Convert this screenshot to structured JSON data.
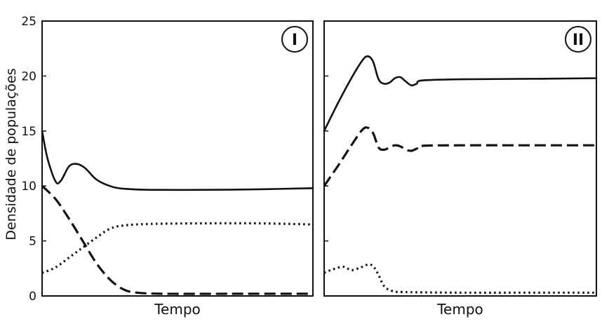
{
  "chart_data": {
    "ylabel": "Densidade de populações",
    "ylim": [
      0,
      25
    ],
    "yticks": [
      "0",
      "5",
      "10",
      "15",
      "20",
      "25"
    ],
    "panels": [
      {
        "id": "I",
        "label": "I",
        "xlabel": "Tempo",
        "type": "line",
        "series": [
          {
            "style": "solid",
            "points": [
              [
                0,
                15
              ],
              [
                0.02,
                12.5
              ],
              [
                0.05,
                10.4
              ],
              [
                0.07,
                10.5
              ],
              [
                0.1,
                11.8
              ],
              [
                0.13,
                12.0
              ],
              [
                0.16,
                11.6
              ],
              [
                0.2,
                10.6
              ],
              [
                0.25,
                10.0
              ],
              [
                0.3,
                9.75
              ],
              [
                0.4,
                9.65
              ],
              [
                0.6,
                9.65
              ],
              [
                0.8,
                9.7
              ],
              [
                1.0,
                9.8
              ]
            ]
          },
          {
            "style": "dashed",
            "points": [
              [
                0,
                10
              ],
              [
                0.05,
                8.8
              ],
              [
                0.1,
                7.0
              ],
              [
                0.15,
                5.0
              ],
              [
                0.2,
                3.0
              ],
              [
                0.25,
                1.5
              ],
              [
                0.3,
                0.6
              ],
              [
                0.35,
                0.3
              ],
              [
                0.45,
                0.2
              ],
              [
                0.7,
                0.2
              ],
              [
                1.0,
                0.2
              ]
            ]
          },
          {
            "style": "dotted",
            "points": [
              [
                0,
                2.1
              ],
              [
                0.05,
                2.6
              ],
              [
                0.1,
                3.5
              ],
              [
                0.15,
                4.4
              ],
              [
                0.2,
                5.3
              ],
              [
                0.25,
                6.1
              ],
              [
                0.3,
                6.4
              ],
              [
                0.4,
                6.55
              ],
              [
                0.6,
                6.6
              ],
              [
                0.8,
                6.6
              ],
              [
                1.0,
                6.5
              ]
            ]
          }
        ]
      },
      {
        "id": "II",
        "label": "II",
        "xlabel": "Tempo",
        "type": "line",
        "series": [
          {
            "style": "solid",
            "points": [
              [
                0,
                15
              ],
              [
                0.05,
                17.5
              ],
              [
                0.1,
                19.8
              ],
              [
                0.14,
                21.4
              ],
              [
                0.16,
                21.8
              ],
              [
                0.18,
                21.3
              ],
              [
                0.2,
                19.7
              ],
              [
                0.22,
                19.3
              ],
              [
                0.24,
                19.4
              ],
              [
                0.26,
                19.8
              ],
              [
                0.28,
                19.9
              ],
              [
                0.3,
                19.5
              ],
              [
                0.32,
                19.15
              ],
              [
                0.34,
                19.3
              ],
              [
                0.36,
                19.6
              ],
              [
                0.5,
                19.7
              ],
              [
                0.8,
                19.75
              ],
              [
                1.0,
                19.8
              ]
            ]
          },
          {
            "style": "dashed",
            "points": [
              [
                0,
                10
              ],
              [
                0.05,
                11.8
              ],
              [
                0.1,
                13.7
              ],
              [
                0.14,
                15.1
              ],
              [
                0.16,
                15.3
              ],
              [
                0.18,
                14.8
              ],
              [
                0.2,
                13.5
              ],
              [
                0.22,
                13.3
              ],
              [
                0.24,
                13.5
              ],
              [
                0.26,
                13.7
              ],
              [
                0.28,
                13.6
              ],
              [
                0.3,
                13.3
              ],
              [
                0.32,
                13.2
              ],
              [
                0.34,
                13.4
              ],
              [
                0.36,
                13.65
              ],
              [
                0.5,
                13.7
              ],
              [
                0.8,
                13.7
              ],
              [
                1.0,
                13.7
              ]
            ]
          },
          {
            "style": "dotted",
            "points": [
              [
                0,
                2.1
              ],
              [
                0.03,
                2.4
              ],
              [
                0.07,
                2.65
              ],
              [
                0.1,
                2.35
              ],
              [
                0.13,
                2.55
              ],
              [
                0.16,
                2.85
              ],
              [
                0.18,
                2.7
              ],
              [
                0.2,
                1.9
              ],
              [
                0.22,
                0.9
              ],
              [
                0.25,
                0.45
              ],
              [
                0.3,
                0.35
              ],
              [
                0.5,
                0.3
              ],
              [
                0.8,
                0.3
              ],
              [
                1.0,
                0.3
              ]
            ]
          }
        ]
      }
    ]
  }
}
